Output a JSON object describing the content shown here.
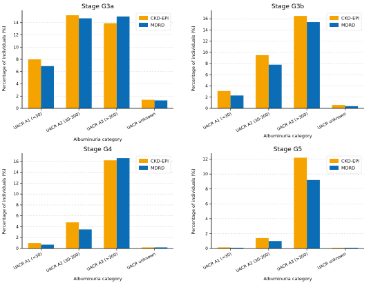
{
  "colors": {
    "ckd_epi": "#F5A300",
    "mdrd": "#0A6DB5"
  },
  "chart_data": [
    {
      "type": "bar",
      "title": "Stage G3a",
      "xlabel": "Albuminuria category",
      "ylabel": "Percentage of individuals (%)",
      "categories": [
        "UACR A1 (<30)",
        "UACR A2 (30-300)",
        "UACR A3 (>300)",
        "UACR unknown"
      ],
      "series": [
        {
          "name": "CKD-EPI",
          "values": [
            8.0,
            15.2,
            13.9,
            1.4
          ]
        },
        {
          "name": "MDRD",
          "values": [
            6.9,
            14.7,
            15.0,
            1.3
          ]
        }
      ],
      "ylim": [
        0,
        16
      ],
      "yticks": [
        0,
        2,
        4,
        6,
        8,
        10,
        12,
        14
      ],
      "grid": "y",
      "legend": "top-right"
    },
    {
      "type": "bar",
      "title": "Stage G3b",
      "xlabel": "Albuminuria category",
      "ylabel": "Percentage of individuals (%)",
      "categories": [
        "UACR A1 (<30)",
        "UACR A2 (30-300)",
        "UACR A3 (>300)",
        "UACR unknown"
      ],
      "series": [
        {
          "name": "CKD-EPI",
          "values": [
            3.1,
            9.5,
            16.5,
            0.6
          ]
        },
        {
          "name": "MDRD",
          "values": [
            2.3,
            7.8,
            15.4,
            0.4
          ]
        }
      ],
      "ylim": [
        0,
        17.5
      ],
      "yticks": [
        0,
        2,
        4,
        6,
        8,
        10,
        12,
        14,
        16
      ],
      "grid": "y",
      "legend": "top-right"
    },
    {
      "type": "bar",
      "title": "Stage G4",
      "xlabel": "Albuminuria category",
      "ylabel": "Percentage of individuals (%)",
      "categories": [
        "UACR A1 (<30)",
        "UACR A2 (30-300)",
        "UACR A3 (>300)",
        "UACR unknown"
      ],
      "series": [
        {
          "name": "CKD-EPI",
          "values": [
            1.0,
            4.8,
            16.2,
            0.2
          ]
        },
        {
          "name": "MDRD",
          "values": [
            0.7,
            3.5,
            16.6,
            0.2
          ]
        }
      ],
      "ylim": [
        0,
        17.5
      ],
      "yticks": [
        0,
        2,
        4,
        6,
        8,
        10,
        12,
        14,
        16
      ],
      "grid": "y",
      "legend": "top-right"
    },
    {
      "type": "bar",
      "title": "Stage G5",
      "xlabel": "Albuminuria category",
      "ylabel": "Percentage of individuals (%)",
      "categories": [
        "UACR A1 (<30)",
        "UACR A2 (30-300)",
        "UACR A3 (>300)",
        "UACR unknown"
      ],
      "series": [
        {
          "name": "CKD-EPI",
          "values": [
            0.15,
            1.4,
            12.2,
            0.1
          ]
        },
        {
          "name": "MDRD",
          "values": [
            0.1,
            1.0,
            9.2,
            0.1
          ]
        }
      ],
      "ylim": [
        0,
        12.8
      ],
      "yticks": [
        0,
        2,
        4,
        6,
        8,
        10,
        12
      ],
      "grid": "y",
      "legend": "top-right"
    }
  ]
}
